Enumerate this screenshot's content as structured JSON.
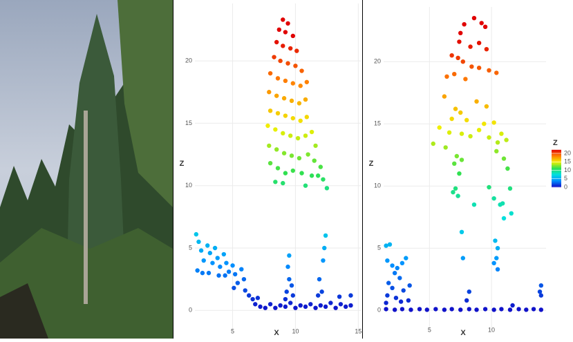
{
  "chart_data": [
    {
      "type": "scatter",
      "x_label": "X",
      "y_label": "Z",
      "x": [
        2.1,
        2.3,
        2.5,
        2.7,
        2.2,
        2.6,
        3.0,
        3.2,
        3.4,
        3.1,
        3.6,
        3.8,
        4.0,
        3.9,
        4.3,
        4.5,
        4.7,
        4.4,
        5.0,
        5.2,
        5.4,
        5.1,
        5.7,
        5.9,
        6.0,
        6.3,
        6.6,
        6.8,
        7.2,
        7.6,
        8.0,
        8.4,
        8.8,
        9.2,
        9.6,
        10.0,
        10.4,
        10.8,
        11.2,
        11.6,
        12.0,
        12.4,
        12.8,
        13.2,
        13.6,
        14.0,
        14.4,
        14.4,
        13.5,
        7.0,
        9.3,
        9.5,
        9.4,
        9.5,
        9.7,
        9.8,
        9.2,
        11.9,
        12.1,
        12.2,
        12.3,
        12.4,
        11.8,
        9.0,
        9.4,
        8.7,
        9.2,
        9.8,
        8.5,
        9.0,
        9.6,
        10.1,
        8.3,
        8.8,
        9.4,
        10.0,
        10.5,
        8.0,
        8.6,
        9.2,
        9.8,
        10.4,
        10.9,
        7.9,
        8.5,
        9.1,
        9.7,
        10.3,
        10.8,
        8.0,
        8.6,
        9.2,
        9.8,
        10.4,
        10.9,
        7.8,
        8.4,
        9.0,
        9.6,
        10.2,
        10.8,
        11.3,
        11.6,
        7.9,
        8.5,
        9.1,
        9.7,
        10.3,
        11.0,
        11.5,
        12.0,
        8.0,
        8.6,
        9.2,
        9.8,
        10.5,
        11.3,
        12.2,
        12.5,
        8.4,
        9.0,
        10.8,
        11.8
      ],
      "values": [
        6.1,
        5.5,
        4.8,
        4.0,
        3.2,
        3.0,
        5.2,
        4.6,
        3.8,
        3.0,
        5.0,
        4.2,
        3.5,
        2.8,
        4.5,
        3.8,
        3.1,
        2.8,
        3.6,
        2.9,
        2.2,
        1.8,
        3.3,
        2.5,
        1.6,
        1.2,
        0.9,
        0.5,
        0.3,
        0.2,
        0.5,
        0.2,
        0.4,
        0.3,
        0.6,
        0.2,
        0.4,
        0.3,
        0.5,
        0.2,
        0.4,
        0.3,
        0.6,
        0.2,
        0.5,
        0.3,
        0.4,
        1.2,
        1.1,
        1.0,
        1.5,
        2.5,
        3.5,
        4.4,
        2.0,
        1.2,
        0.9,
        2.5,
        1.5,
        4.0,
        5.0,
        6.0,
        1.2,
        23.3,
        23.0,
        22.5,
        22.3,
        22.0,
        21.5,
        21.2,
        21.0,
        20.8,
        20.3,
        20.0,
        19.8,
        19.6,
        19.2,
        19.0,
        18.6,
        18.4,
        18.2,
        18.0,
        18.3,
        17.5,
        17.2,
        17.0,
        16.8,
        16.6,
        16.9,
        16.0,
        15.8,
        15.6,
        15.4,
        15.2,
        15.5,
        14.8,
        14.5,
        14.2,
        14.0,
        13.8,
        14.0,
        14.3,
        13.2,
        13.2,
        12.9,
        12.6,
        12.4,
        12.2,
        12.5,
        12.0,
        11.5,
        11.8,
        11.4,
        11.0,
        11.2,
        11.0,
        10.8,
        10.5,
        9.8,
        10.3,
        10.2,
        10.0,
        10.8
      ],
      "xlim": [
        2,
        15.2
      ],
      "ylim": [
        -1.7,
        24.6
      ],
      "xticks": [
        5,
        10,
        15
      ],
      "yticks": [
        0,
        5,
        10,
        15,
        20
      ],
      "grid": true,
      "colormap": {
        "domain": [
          0,
          22
        ],
        "colors": [
          "#1010c8",
          "#0090ff",
          "#00e0e0",
          "#30e050",
          "#f0f000",
          "#ff8000",
          "#e00000"
        ]
      }
    },
    {
      "type": "scatter",
      "x_label": "X",
      "y_label": "Z",
      "x": [
        1.5,
        2.2,
        2.8,
        3.5,
        4.2,
        4.8,
        5.5,
        6.2,
        6.8,
        7.5,
        8.2,
        8.8,
        9.5,
        10.2,
        10.8,
        11.5,
        12.2,
        12.8,
        13.4,
        14.0,
        1.5,
        1.8,
        1.6,
        2.0,
        2.4,
        2.8,
        3.1,
        2.2,
        2.6,
        1.7,
        2.0,
        2.9,
        3.4,
        1.6,
        2.3,
        2.7,
        3.3,
        1.5,
        14.0,
        13.9,
        14.0,
        11.7,
        8.0,
        8.2,
        7.6,
        7.7,
        10.3,
        10.5,
        10.4,
        10.2,
        10.5,
        8.6,
        7.8,
        9.2,
        9.5,
        7.5,
        7.4,
        8.3,
        9.0,
        9.6,
        6.8,
        7.3,
        7.7,
        8.4,
        9.0,
        9.8,
        10.4,
        6.4,
        7.0,
        7.9,
        6.2,
        7.1,
        7.5,
        8.8,
        9.6,
        6.8,
        8.0,
        9.4,
        10.2,
        5.8,
        6.6,
        7.6,
        8.3,
        9.0,
        9.8,
        10.8,
        5.3,
        6.3,
        10.5,
        11.2,
        7.2,
        7.6,
        10.4,
        11.3,
        7.0,
        7.4,
        11.0,
        6.9,
        7.3,
        7.1,
        8.6,
        9.8,
        10.2,
        10.9,
        11.5,
        11.0,
        11.6,
        10.7
      ],
      "values": [
        0.1,
        0.05,
        0.1,
        0.05,
        0.1,
        0.05,
        0.1,
        0.05,
        0.1,
        0.05,
        0.1,
        0.05,
        0.1,
        0.05,
        0.1,
        0.05,
        0.1,
        0.05,
        0.1,
        0.05,
        5.2,
        5.3,
        4.0,
        3.6,
        3.4,
        3.8,
        4.2,
        3.0,
        2.6,
        2.2,
        1.8,
        1.6,
        2.0,
        1.2,
        1.0,
        0.7,
        0.8,
        0.6,
        2.0,
        1.5,
        1.2,
        0.4,
        0.8,
        1.5,
        6.3,
        4.2,
        5.6,
        5.0,
        4.2,
        3.8,
        3.3,
        23.5,
        23.0,
        23.1,
        22.8,
        22.3,
        21.6,
        21.2,
        21.5,
        21.0,
        20.5,
        20.3,
        20.0,
        19.6,
        19.5,
        19.3,
        19.1,
        18.8,
        19.0,
        18.6,
        17.2,
        16.2,
        15.9,
        16.8,
        16.4,
        15.4,
        15.3,
        15.0,
        15.1,
        14.7,
        14.3,
        14.2,
        14.0,
        14.5,
        13.9,
        14.2,
        13.4,
        13.1,
        13.5,
        13.7,
        12.4,
        12.1,
        12.8,
        11.4,
        11.8,
        11.0,
        12.2,
        9.5,
        9.2,
        9.8,
        8.5,
        9.9,
        9.0,
        8.6,
        9.8,
        7.4,
        7.8,
        8.5
      ],
      "xlim": [
        1.3,
        14.4
      ],
      "ylim": [
        -1.6,
        24.4
      ],
      "xticks": [
        5,
        10
      ],
      "yticks": [
        0,
        5,
        10,
        15,
        20
      ],
      "grid": true,
      "colormap": {
        "domain": [
          0,
          22
        ],
        "colors": [
          "#1010c8",
          "#0090ff",
          "#00e0e0",
          "#30e050",
          "#f0f000",
          "#ff8000",
          "#e00000"
        ]
      },
      "colorbar": {
        "title": "Z",
        "ticks": [
          0,
          5,
          10,
          15,
          20
        ]
      }
    }
  ]
}
